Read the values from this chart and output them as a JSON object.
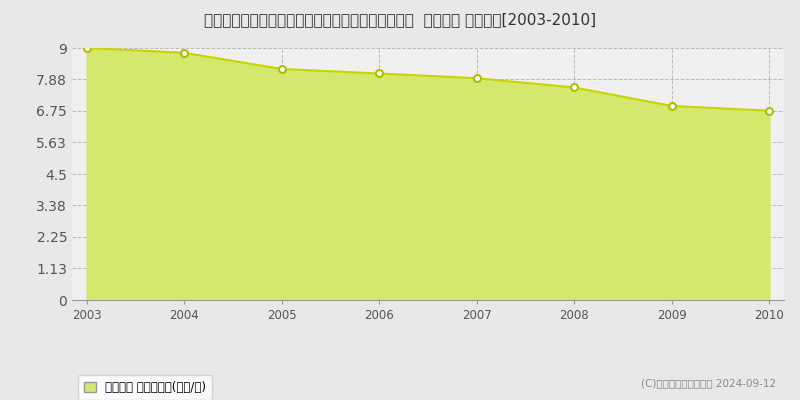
{
  "title": "青森県三戸郡三戸町大字川守田字横道３４番１０外  地価公示 地価推移[2003-2010]",
  "years": [
    2003,
    2004,
    2005,
    2006,
    2007,
    2008,
    2009,
    2010
  ],
  "values": [
    9.0,
    8.83,
    8.25,
    8.09,
    7.92,
    7.59,
    6.93,
    6.76
  ],
  "ylim": [
    0,
    9
  ],
  "yticks": [
    0,
    1.13,
    2.25,
    3.38,
    4.5,
    5.63,
    6.75,
    7.88,
    9
  ],
  "ytick_labels": [
    "0",
    "1.13",
    "2.25",
    "3.38",
    "4.5",
    "5.63",
    "6.75",
    "7.88",
    "9"
  ],
  "line_color": "#c8d400",
  "fill_color": "#d4e86e",
  "fill_alpha": 1.0,
  "marker_color": "white",
  "marker_edge_color": "#b0bc00",
  "background_color": "#e8e8e8",
  "plot_bg_color": "#f0f0f0",
  "grid_color": "#bbbbbb",
  "title_fontsize": 11,
  "legend_label": "地価公示 平均坪単価(万円/坪)",
  "copyright_text": "(C)土地価格ドットコム 2024-09-12"
}
